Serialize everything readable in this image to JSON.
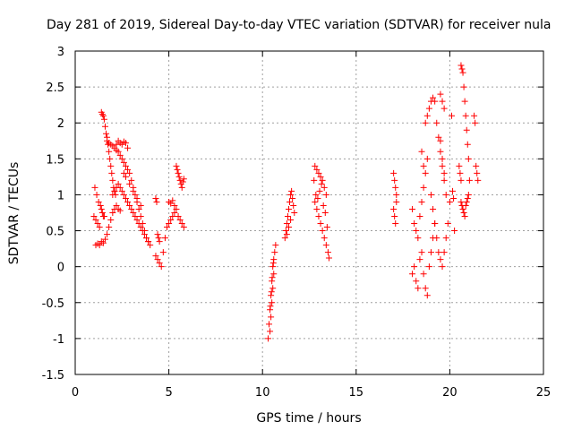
{
  "chart_data": {
    "type": "scatter",
    "title": "Day 281 of 2019, Sidereal Day-to-day VTEC variation (SDTVAR) for receiver nula",
    "xlabel": "GPS time / hours",
    "ylabel": "SDTVAR / TECUs",
    "xlim": [
      0,
      25
    ],
    "ylim": [
      -1.5,
      3
    ],
    "xticks": [
      "0",
      "5",
      "10",
      "15",
      "20",
      "25"
    ],
    "yticks": [
      "-1.5",
      "-1",
      "-0.5",
      "0",
      "0.5",
      "1",
      "1.5",
      "2",
      "2.5",
      "3"
    ],
    "grid": true,
    "marker": "+",
    "color": "#ff0000",
    "series": [
      {
        "name": "SDTVAR",
        "points": [
          [
            1.0,
            0.7
          ],
          [
            1.05,
            1.1
          ],
          [
            1.1,
            0.65
          ],
          [
            1.15,
            1.0
          ],
          [
            1.2,
            0.6
          ],
          [
            1.25,
            0.9
          ],
          [
            1.3,
            0.55
          ],
          [
            1.35,
            0.85
          ],
          [
            1.4,
            0.8
          ],
          [
            1.45,
            0.75
          ],
          [
            1.5,
            0.7
          ],
          [
            1.55,
            0.7
          ],
          [
            1.1,
            0.3
          ],
          [
            1.2,
            0.32
          ],
          [
            1.3,
            0.3
          ],
          [
            1.4,
            0.35
          ],
          [
            1.5,
            0.33
          ],
          [
            1.6,
            0.38
          ],
          [
            1.7,
            0.45
          ],
          [
            1.8,
            0.55
          ],
          [
            1.9,
            0.65
          ],
          [
            2.0,
            0.75
          ],
          [
            2.1,
            0.8
          ],
          [
            2.2,
            0.85
          ],
          [
            2.3,
            0.8
          ],
          [
            2.4,
            0.78
          ],
          [
            1.4,
            2.15
          ],
          [
            1.45,
            2.12
          ],
          [
            1.5,
            2.1
          ],
          [
            1.55,
            2.05
          ],
          [
            1.6,
            1.95
          ],
          [
            1.65,
            1.85
          ],
          [
            1.7,
            1.8
          ],
          [
            1.75,
            1.7
          ],
          [
            1.8,
            1.6
          ],
          [
            1.85,
            1.5
          ],
          [
            1.9,
            1.4
          ],
          [
            1.95,
            1.3
          ],
          [
            2.0,
            1.2
          ],
          [
            2.05,
            1.1
          ],
          [
            2.1,
            1.05
          ],
          [
            2.15,
            1.0
          ],
          [
            1.7,
            1.75
          ],
          [
            1.8,
            1.72
          ],
          [
            1.9,
            1.7
          ],
          [
            2.0,
            1.68
          ],
          [
            2.1,
            1.65
          ],
          [
            2.2,
            1.62
          ],
          [
            2.3,
            1.6
          ],
          [
            2.4,
            1.55
          ],
          [
            2.5,
            1.5
          ],
          [
            2.6,
            1.45
          ],
          [
            2.7,
            1.4
          ],
          [
            2.8,
            1.35
          ],
          [
            2.9,
            1.3
          ],
          [
            3.0,
            1.2
          ],
          [
            3.1,
            1.1
          ],
          [
            3.2,
            1.0
          ],
          [
            3.3,
            0.9
          ],
          [
            3.4,
            0.8
          ],
          [
            3.5,
            0.7
          ],
          [
            3.6,
            0.6
          ],
          [
            3.7,
            0.5
          ],
          [
            3.8,
            0.4
          ],
          [
            3.9,
            0.35
          ],
          [
            4.0,
            0.3
          ],
          [
            2.0,
            1.0
          ],
          [
            2.1,
            1.05
          ],
          [
            2.2,
            1.1
          ],
          [
            2.3,
            1.15
          ],
          [
            2.4,
            1.1
          ],
          [
            2.5,
            1.05
          ],
          [
            2.6,
            1.0
          ],
          [
            2.7,
            0.95
          ],
          [
            2.8,
            0.9
          ],
          [
            2.9,
            0.85
          ],
          [
            3.0,
            0.8
          ],
          [
            3.1,
            0.75
          ],
          [
            3.2,
            0.7
          ],
          [
            3.3,
            0.65
          ],
          [
            3.4,
            0.6
          ],
          [
            3.5,
            0.55
          ],
          [
            3.6,
            0.5
          ],
          [
            3.7,
            0.45
          ],
          [
            3.8,
            0.4
          ],
          [
            3.9,
            0.35
          ],
          [
            2.2,
            1.7
          ],
          [
            2.3,
            1.75
          ],
          [
            2.4,
            1.72
          ],
          [
            2.5,
            1.7
          ],
          [
            2.6,
            1.74
          ],
          [
            2.7,
            1.72
          ],
          [
            2.8,
            1.65
          ],
          [
            2.6,
            1.3
          ],
          [
            2.7,
            1.25
          ],
          [
            2.9,
            1.15
          ],
          [
            3.1,
            1.05
          ],
          [
            3.3,
            0.95
          ],
          [
            3.5,
            0.85
          ],
          [
            4.3,
            0.95
          ],
          [
            4.35,
            0.9
          ],
          [
            4.4,
            0.45
          ],
          [
            4.45,
            0.4
          ],
          [
            4.5,
            0.35
          ],
          [
            4.3,
            0.15
          ],
          [
            4.4,
            0.1
          ],
          [
            4.5,
            0.05
          ],
          [
            4.6,
            0.0
          ],
          [
            4.7,
            0.2
          ],
          [
            4.8,
            0.4
          ],
          [
            5.0,
            0.9
          ],
          [
            5.1,
            0.88
          ],
          [
            5.2,
            0.92
          ],
          [
            5.3,
            0.85
          ],
          [
            4.9,
            0.55
          ],
          [
            5.0,
            0.6
          ],
          [
            5.1,
            0.65
          ],
          [
            5.2,
            0.7
          ],
          [
            5.3,
            0.75
          ],
          [
            5.4,
            0.8
          ],
          [
            5.5,
            0.7
          ],
          [
            5.6,
            0.65
          ],
          [
            5.7,
            0.6
          ],
          [
            5.8,
            0.55
          ],
          [
            5.4,
            1.4
          ],
          [
            5.45,
            1.35
          ],
          [
            5.5,
            1.3
          ],
          [
            5.55,
            1.25
          ],
          [
            5.6,
            1.2
          ],
          [
            5.65,
            1.15
          ],
          [
            5.7,
            1.1
          ],
          [
            5.75,
            1.18
          ],
          [
            5.8,
            1.22
          ],
          [
            10.3,
            -1.0
          ],
          [
            10.35,
            -0.8
          ],
          [
            10.4,
            -0.6
          ],
          [
            10.45,
            -0.4
          ],
          [
            10.5,
            -0.2
          ],
          [
            10.55,
            0.0
          ],
          [
            10.6,
            0.1
          ],
          [
            10.65,
            0.2
          ],
          [
            10.7,
            0.3
          ],
          [
            10.4,
            -0.9
          ],
          [
            10.45,
            -0.7
          ],
          [
            10.5,
            -0.5
          ],
          [
            10.55,
            -0.3
          ],
          [
            10.6,
            -0.1
          ],
          [
            10.42,
            -0.55
          ],
          [
            10.48,
            -0.35
          ],
          [
            10.52,
            -0.15
          ],
          [
            10.58,
            0.05
          ],
          [
            11.2,
            0.4
          ],
          [
            11.25,
            0.5
          ],
          [
            11.3,
            0.6
          ],
          [
            11.35,
            0.7
          ],
          [
            11.4,
            0.8
          ],
          [
            11.45,
            0.9
          ],
          [
            11.5,
            1.0
          ],
          [
            11.55,
            1.05
          ],
          [
            11.6,
            0.95
          ],
          [
            11.65,
            0.85
          ],
          [
            11.7,
            0.75
          ],
          [
            11.3,
            0.45
          ],
          [
            11.4,
            0.55
          ],
          [
            11.5,
            0.65
          ],
          [
            12.8,
            1.4
          ],
          [
            12.9,
            1.35
          ],
          [
            13.0,
            1.3
          ],
          [
            13.1,
            1.25
          ],
          [
            13.2,
            1.2
          ],
          [
            13.3,
            1.1
          ],
          [
            13.4,
            1.0
          ],
          [
            12.8,
            0.9
          ],
          [
            12.9,
            0.8
          ],
          [
            13.0,
            0.7
          ],
          [
            13.1,
            0.6
          ],
          [
            13.2,
            0.5
          ],
          [
            13.3,
            0.4
          ],
          [
            13.4,
            0.3
          ],
          [
            13.5,
            0.2
          ],
          [
            13.55,
            0.12
          ],
          [
            12.75,
            1.2
          ],
          [
            12.85,
            1.0
          ],
          [
            12.95,
            0.95
          ],
          [
            13.05,
            1.05
          ],
          [
            13.15,
            1.15
          ],
          [
            13.25,
            0.85
          ],
          [
            13.35,
            0.75
          ],
          [
            13.45,
            0.55
          ],
          [
            17.0,
            1.3
          ],
          [
            17.05,
            1.2
          ],
          [
            17.1,
            1.1
          ],
          [
            17.15,
            1.0
          ],
          [
            17.0,
            0.8
          ],
          [
            17.05,
            0.7
          ],
          [
            17.1,
            0.6
          ],
          [
            17.15,
            0.9
          ],
          [
            18.0,
            0.8
          ],
          [
            18.1,
            0.6
          ],
          [
            18.2,
            0.5
          ],
          [
            18.3,
            0.4
          ],
          [
            18.4,
            0.7
          ],
          [
            18.5,
            0.9
          ],
          [
            18.6,
            1.1
          ],
          [
            18.7,
            1.3
          ],
          [
            18.8,
            1.5
          ],
          [
            18.0,
            -0.1
          ],
          [
            18.1,
            0.0
          ],
          [
            18.2,
            -0.2
          ],
          [
            18.3,
            -0.3
          ],
          [
            18.4,
            0.1
          ],
          [
            18.5,
            0.2
          ],
          [
            18.6,
            -0.1
          ],
          [
            18.7,
            -0.3
          ],
          [
            18.8,
            -0.4
          ],
          [
            18.9,
            0.0
          ],
          [
            19.0,
            0.2
          ],
          [
            19.1,
            0.4
          ],
          [
            19.2,
            0.6
          ],
          [
            18.7,
            2.0
          ],
          [
            18.8,
            2.1
          ],
          [
            18.9,
            2.2
          ],
          [
            19.0,
            2.3
          ],
          [
            19.1,
            2.35
          ],
          [
            19.2,
            2.3
          ],
          [
            19.3,
            2.0
          ],
          [
            19.4,
            1.8
          ],
          [
            19.5,
            1.6
          ],
          [
            19.6,
            1.4
          ],
          [
            19.7,
            1.2
          ],
          [
            19.8,
            1.0
          ],
          [
            18.5,
            1.6
          ],
          [
            18.6,
            1.4
          ],
          [
            19.0,
            1.0
          ],
          [
            19.1,
            0.8
          ],
          [
            19.2,
            0.6
          ],
          [
            19.3,
            0.4
          ],
          [
            19.4,
            0.2
          ],
          [
            19.5,
            0.1
          ],
          [
            19.6,
            0.0
          ],
          [
            19.7,
            0.2
          ],
          [
            19.8,
            0.4
          ],
          [
            19.9,
            0.6
          ],
          [
            20.0,
            0.9
          ],
          [
            19.5,
            2.4
          ],
          [
            19.6,
            2.3
          ],
          [
            19.7,
            2.2
          ],
          [
            19.5,
            1.75
          ],
          [
            19.6,
            1.5
          ],
          [
            19.7,
            1.3
          ],
          [
            20.1,
            2.1
          ],
          [
            20.15,
            1.05
          ],
          [
            20.2,
            0.95
          ],
          [
            20.25,
            0.5
          ],
          [
            20.6,
            2.8
          ],
          [
            20.65,
            2.75
          ],
          [
            20.7,
            2.7
          ],
          [
            20.75,
            2.5
          ],
          [
            20.8,
            2.3
          ],
          [
            20.85,
            2.1
          ],
          [
            20.9,
            1.9
          ],
          [
            20.95,
            1.7
          ],
          [
            21.0,
            1.5
          ],
          [
            21.05,
            1.2
          ],
          [
            20.5,
            1.4
          ],
          [
            20.55,
            1.3
          ],
          [
            20.6,
            1.2
          ],
          [
            20.6,
            0.9
          ],
          [
            20.65,
            0.85
          ],
          [
            20.7,
            0.8
          ],
          [
            20.75,
            0.75
          ],
          [
            20.8,
            0.7
          ],
          [
            20.85,
            0.85
          ],
          [
            20.9,
            0.9
          ],
          [
            20.95,
            0.95
          ],
          [
            21.0,
            1.0
          ],
          [
            21.3,
            2.1
          ],
          [
            21.35,
            2.0
          ],
          [
            21.4,
            1.4
          ],
          [
            21.45,
            1.3
          ],
          [
            21.5,
            1.2
          ]
        ]
      }
    ]
  }
}
